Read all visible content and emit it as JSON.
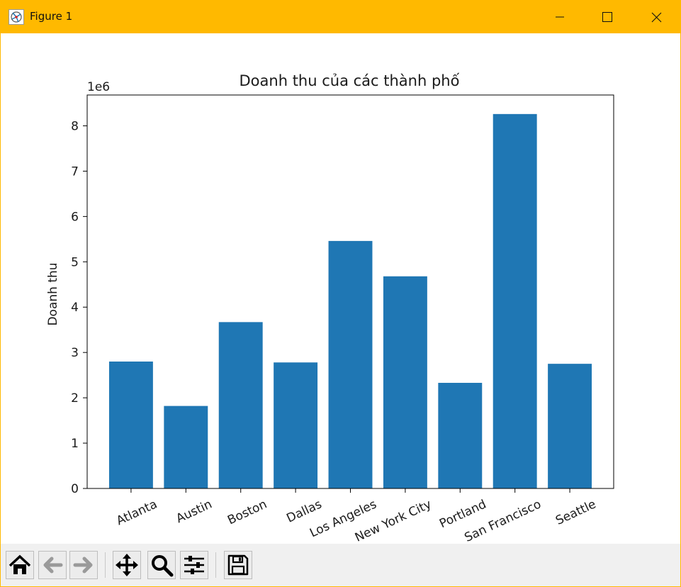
{
  "window": {
    "title": "Figure 1",
    "colors": {
      "titlebar": "#FFB900",
      "bar": "#1f77b4"
    }
  },
  "toolbar": {
    "buttons": [
      {
        "name": "home-button",
        "icon": "home-icon"
      },
      {
        "name": "back-button",
        "icon": "arrow-left-icon"
      },
      {
        "name": "forward-button",
        "icon": "arrow-right-icon"
      },
      {
        "name": "pan-button",
        "icon": "move-icon"
      },
      {
        "name": "zoom-button",
        "icon": "magnifier-icon"
      },
      {
        "name": "configure-subplots-button",
        "icon": "sliders-icon"
      },
      {
        "name": "save-button",
        "icon": "floppy-disk-icon"
      }
    ]
  },
  "chart_data": {
    "type": "bar",
    "title": "Doanh thu của các thành phố",
    "xlabel": "",
    "ylabel": "Doanh thu",
    "offset_label": "1e6",
    "categories": [
      "Atlanta",
      "Austin",
      "Boston",
      "Dallas",
      "Los Angeles",
      "New York City",
      "Portland",
      "San Francisco",
      "Seattle"
    ],
    "values": [
      2.8,
      1.82,
      3.67,
      2.78,
      5.46,
      4.68,
      2.33,
      8.26,
      2.75
    ],
    "value_scale": 1000000,
    "ylim": [
      0,
      8.68
    ],
    "yticks": [
      0,
      1,
      2,
      3,
      4,
      5,
      6,
      7,
      8
    ],
    "grid": false,
    "legend": "none",
    "xtick_rotation": 25
  }
}
